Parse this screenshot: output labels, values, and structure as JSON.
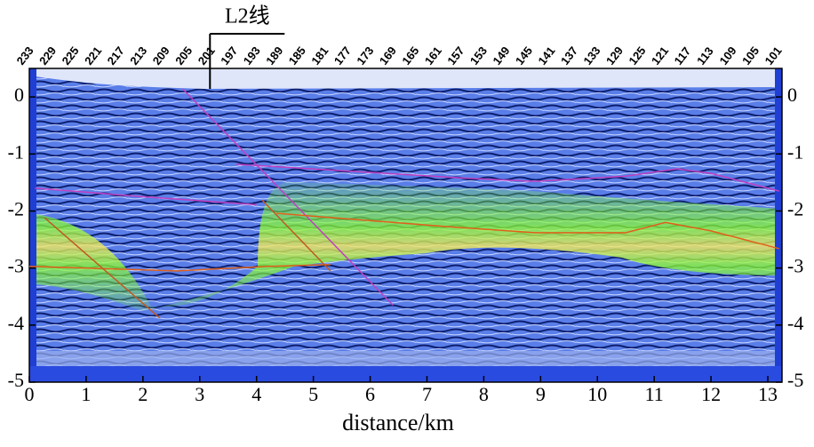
{
  "chart_data": {
    "type": "line",
    "x_label": "distance/km",
    "xlim": [
      0,
      13.25
    ],
    "xticks": [
      0,
      1,
      2,
      3,
      4,
      5,
      6,
      7,
      8,
      9,
      10,
      11,
      12,
      13
    ],
    "ylim": [
      -5,
      0.5
    ],
    "yticks": [
      0,
      -1,
      -2,
      -3,
      -4,
      -5
    ],
    "stations": [
      233,
      229,
      225,
      221,
      217,
      213,
      209,
      205,
      201,
      197,
      193,
      189,
      185,
      181,
      177,
      173,
      169,
      165,
      161,
      157,
      153,
      149,
      145,
      141,
      137,
      133,
      129,
      125,
      121,
      117,
      113,
      109,
      105,
      101
    ],
    "annotation": {
      "text": "L2线",
      "x": 3.18
    },
    "series": [
      {
        "color": "#c040c0",
        "x": [
          0.1,
          2.0,
          4.0
        ],
        "values": [
          -1.6,
          -1.75,
          -1.89
        ]
      },
      {
        "color": "#c040c0",
        "x": [
          2.7,
          6.4
        ],
        "values": [
          0.14,
          -3.65
        ]
      },
      {
        "color": "#c040c0",
        "x": [
          3.64,
          7.6,
          8.9,
          10.5,
          11.4,
          12.0,
          13.2
        ],
        "values": [
          -1.18,
          -1.42,
          -1.48,
          -1.39,
          -1.26,
          -1.34,
          -1.65
        ]
      },
      {
        "color": "#e0601a",
        "x": [
          0,
          2.6,
          4.2,
          5.3
        ],
        "values": [
          -2.97,
          -3.05,
          -2.97,
          -2.94
        ]
      },
      {
        "color": "#e0601a",
        "x": [
          4.35,
          7.3,
          8.9,
          10.5,
          11.2,
          12.0,
          13.2
        ],
        "values": [
          -2.04,
          -2.27,
          -2.38,
          -2.38,
          -2.2,
          -2.35,
          -2.66
        ]
      },
      {
        "color": "#c05a20",
        "x": [
          0.27,
          2.3
        ],
        "values": [
          -2.12,
          -3.88
        ]
      },
      {
        "color": "#c05a20",
        "x": [
          4.1,
          5.3
        ],
        "values": [
          -1.81,
          -3.05
        ]
      }
    ]
  }
}
